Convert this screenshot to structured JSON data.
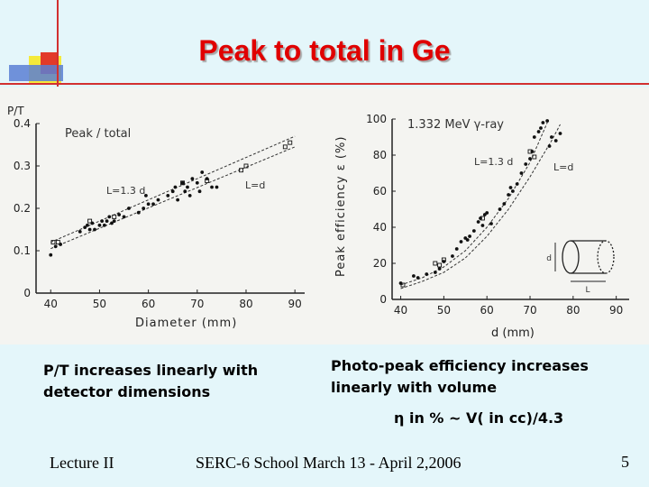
{
  "slide": {
    "title": "Peak to total in Ge",
    "caption_left": "P/T increases linearly with detector dimensions",
    "caption_right": "Photo-peak efficiency increases linearly with volume",
    "formula": "η in % ~ V( in cc)/4.3",
    "footer_left": "Lecture II",
    "footer_center": "SERC-6 School March 13 - April 2,2006",
    "page_number": "5"
  },
  "chart_data": [
    {
      "type": "scatter",
      "title": "Peak / total",
      "ylabel": "P/T",
      "xlabel": "Diameter (mm)",
      "xlim": [
        37,
        92
      ],
      "ylim": [
        0,
        0.4
      ],
      "x_ticks": [
        "40",
        "50",
        "60",
        "70",
        "80",
        "90"
      ],
      "y_ticks": [
        "0",
        "0.1",
        "0.2",
        "0.3",
        "0.4"
      ],
      "annotations": [
        "L=1.3 d",
        "L=d"
      ],
      "series": [
        {
          "marker": "dot",
          "points": [
            [
              40,
              0.09
            ],
            [
              41,
              0.11
            ],
            [
              42,
              0.115
            ],
            [
              46,
              0.145
            ],
            [
              47,
              0.155
            ],
            [
              47.5,
              0.16
            ],
            [
              48,
              0.15
            ],
            [
              48.5,
              0.165
            ],
            [
              49,
              0.15
            ],
            [
              50,
              0.16
            ],
            [
              50.5,
              0.17
            ],
            [
              51,
              0.16
            ],
            [
              51.5,
              0.17
            ],
            [
              52,
              0.18
            ],
            [
              52.5,
              0.165
            ],
            [
              53,
              0.17
            ],
            [
              54,
              0.185
            ],
            [
              55,
              0.18
            ],
            [
              56,
              0.2
            ],
            [
              58,
              0.19
            ],
            [
              59,
              0.2
            ],
            [
              59.5,
              0.23
            ],
            [
              60,
              0.21
            ],
            [
              61,
              0.21
            ],
            [
              62,
              0.22
            ],
            [
              64,
              0.23
            ],
            [
              65,
              0.24
            ],
            [
              65.5,
              0.25
            ],
            [
              66,
              0.22
            ],
            [
              67,
              0.26
            ],
            [
              67.5,
              0.24
            ],
            [
              68,
              0.25
            ],
            [
              68.5,
              0.23
            ],
            [
              69,
              0.27
            ],
            [
              70,
              0.26
            ],
            [
              70.5,
              0.24
            ],
            [
              71,
              0.285
            ],
            [
              72,
              0.27
            ],
            [
              73,
              0.25
            ],
            [
              74,
              0.25
            ]
          ]
        },
        {
          "marker": "square",
          "points": [
            [
              40.5,
              0.12
            ],
            [
              41.5,
              0.12
            ],
            [
              48,
              0.17
            ],
            [
              53,
              0.18
            ],
            [
              67,
              0.26
            ],
            [
              72,
              0.265
            ],
            [
              79,
              0.29
            ],
            [
              80,
              0.3
            ],
            [
              88,
              0.345
            ],
            [
              89,
              0.355
            ]
          ]
        }
      ],
      "fit_lines": [
        {
          "label": "L=1.3 d",
          "points": [
            [
              40,
              0.12
            ],
            [
              90,
              0.37
            ]
          ]
        },
        {
          "label": "L=d",
          "points": [
            [
              40,
              0.105
            ],
            [
              90,
              0.345
            ]
          ]
        }
      ]
    },
    {
      "type": "scatter",
      "title": "1.332 MeV γ-ray",
      "ylabel": "Peak efficiency ε (%)",
      "xlabel": "d (mm)",
      "xlim": [
        38,
        93
      ],
      "ylim": [
        0,
        100
      ],
      "x_ticks": [
        "40",
        "50",
        "60",
        "70",
        "80",
        "90"
      ],
      "y_ticks": [
        "0",
        "20",
        "40",
        "60",
        "80",
        "100"
      ],
      "annotations": [
        "L=1.3 d",
        "L=d",
        "d",
        "L"
      ],
      "series": [
        {
          "marker": "dot",
          "points": [
            [
              40,
              9
            ],
            [
              43,
              13
            ],
            [
              44,
              12
            ],
            [
              46,
              14
            ],
            [
              48,
              15
            ],
            [
              49,
              17
            ],
            [
              50,
              21
            ],
            [
              52,
              24
            ],
            [
              53,
              28
            ],
            [
              54,
              32
            ],
            [
              55,
              34
            ],
            [
              55.5,
              33
            ],
            [
              56,
              35
            ],
            [
              57,
              38
            ],
            [
              58,
              43
            ],
            [
              58.5,
              45
            ],
            [
              59,
              41
            ],
            [
              59.5,
              47
            ],
            [
              60,
              48
            ],
            [
              61,
              42
            ],
            [
              63,
              50
            ],
            [
              64,
              53
            ],
            [
              65,
              58
            ],
            [
              65.5,
              62
            ],
            [
              66,
              60
            ],
            [
              67,
              64
            ],
            [
              68,
              70
            ],
            [
              69,
              75
            ],
            [
              70,
              78
            ],
            [
              70.5,
              82
            ],
            [
              71,
              90
            ],
            [
              72,
              93
            ],
            [
              72.5,
              95
            ],
            [
              73,
              98
            ],
            [
              74,
              99
            ],
            [
              74.5,
              85
            ],
            [
              75,
              90
            ],
            [
              76,
              88
            ],
            [
              77,
              92
            ]
          ]
        },
        {
          "marker": "square",
          "points": [
            [
              40.5,
              8
            ],
            [
              48,
              20
            ],
            [
              49,
              19
            ],
            [
              50,
              22
            ],
            [
              59,
              45
            ],
            [
              70,
              82
            ],
            [
              71,
              79
            ]
          ]
        }
      ],
      "fit_lines": [
        {
          "label": "L=1.3 d",
          "points": [
            [
              40,
              8
            ],
            [
              45,
              12
            ],
            [
              50,
              18
            ],
            [
              55,
              27
            ],
            [
              60,
              40
            ],
            [
              65,
              56
            ],
            [
              70,
              76
            ],
            [
              74,
              98
            ]
          ]
        },
        {
          "label": "L=d",
          "points": [
            [
              40,
              6
            ],
            [
              45,
              10
            ],
            [
              50,
              15
            ],
            [
              55,
              23
            ],
            [
              60,
              35
            ],
            [
              65,
              50
            ],
            [
              70,
              68
            ],
            [
              75,
              88
            ],
            [
              77,
              97
            ]
          ]
        }
      ]
    }
  ]
}
